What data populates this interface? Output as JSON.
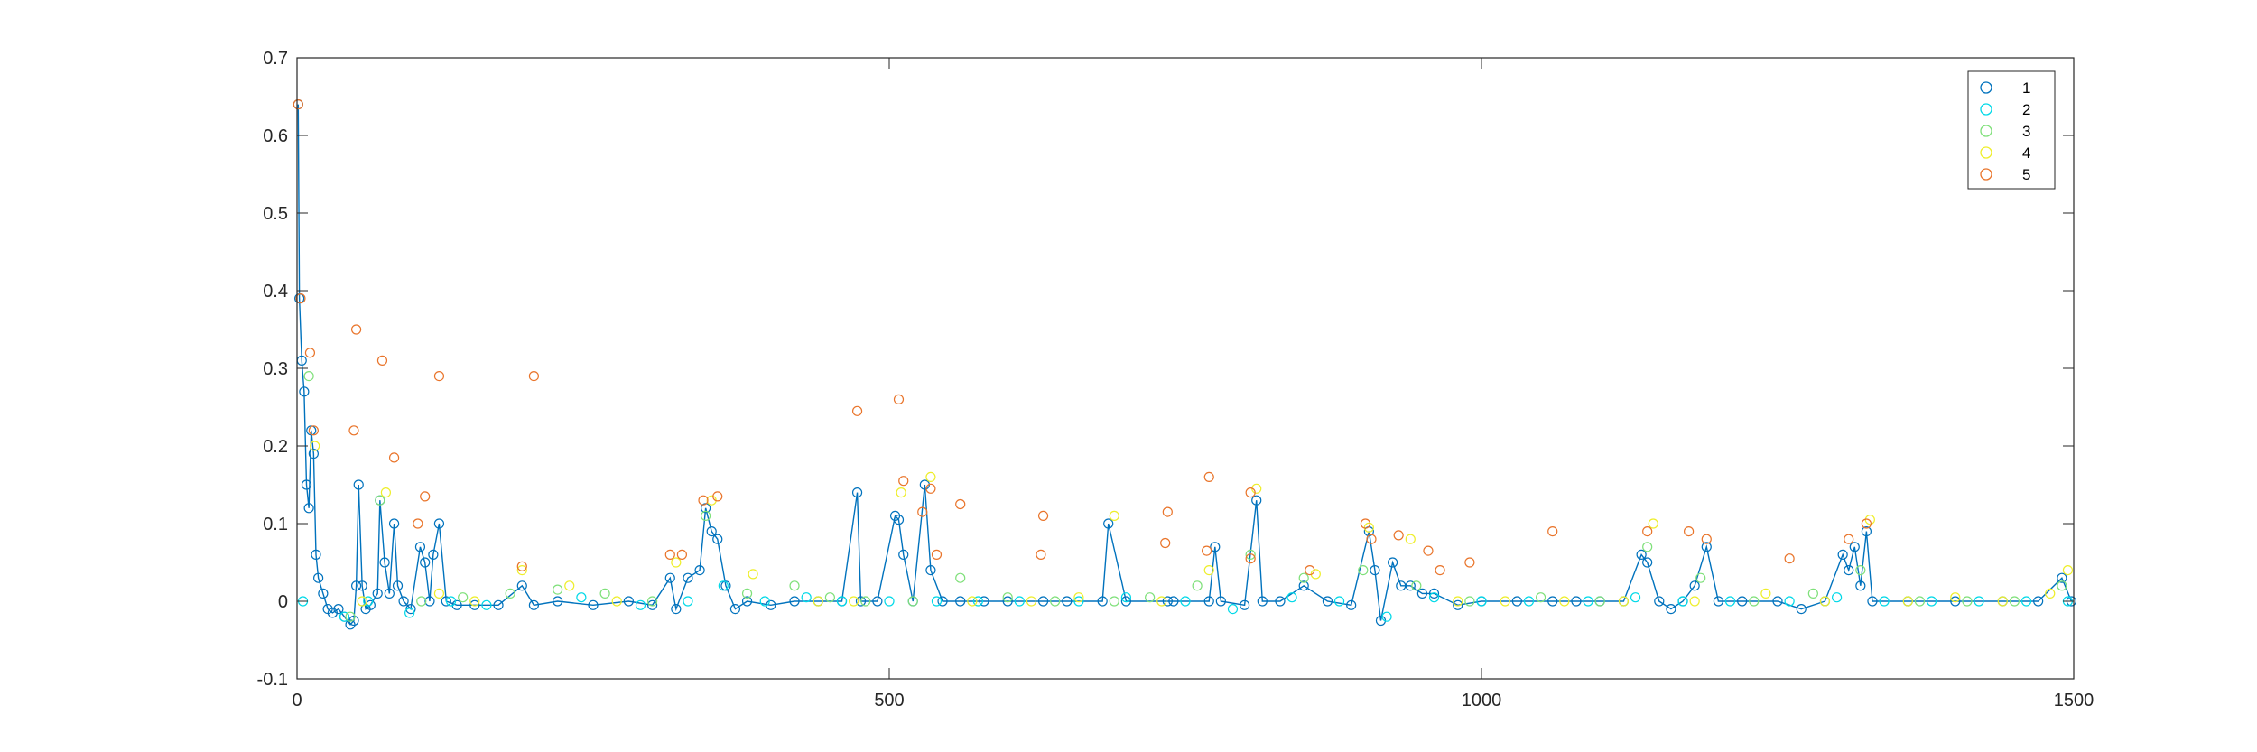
{
  "chart_data": {
    "type": "scatter",
    "title": "",
    "xlabel": "",
    "ylabel": "",
    "xlim": [
      0,
      1500
    ],
    "ylim": [
      -0.1,
      0.7
    ],
    "grid": false,
    "legend_position": "top-right",
    "x_ticks": [
      0,
      500,
      1000,
      1500
    ],
    "x_tick_labels": [
      "0",
      "500",
      "1000",
      "1500"
    ],
    "y_ticks": [
      -0.1,
      0,
      0.1,
      0.2,
      0.3,
      0.4,
      0.5,
      0.6,
      0.7
    ],
    "y_tick_labels": [
      "-0.1",
      "0",
      "0.1",
      "0.2",
      "0.3",
      "0.4",
      "0.5",
      "0.6",
      "0.7"
    ],
    "line_series": 1,
    "series": [
      {
        "name": "1",
        "color": "#0072BD",
        "points": [
          [
            1,
            0.64
          ],
          [
            2,
            0.39
          ],
          [
            4,
            0.31
          ],
          [
            6,
            0.27
          ],
          [
            8,
            0.15
          ],
          [
            10,
            0.12
          ],
          [
            12,
            0.22
          ],
          [
            14,
            0.19
          ],
          [
            16,
            0.06
          ],
          [
            18,
            0.03
          ],
          [
            22,
            0.01
          ],
          [
            26,
            -0.01
          ],
          [
            30,
            -0.015
          ],
          [
            35,
            -0.01
          ],
          [
            40,
            -0.02
          ],
          [
            45,
            -0.03
          ],
          [
            48,
            -0.025
          ],
          [
            50,
            0.02
          ],
          [
            52,
            0.15
          ],
          [
            55,
            0.02
          ],
          [
            58,
            -0.01
          ],
          [
            62,
            -0.005
          ],
          [
            68,
            0.01
          ],
          [
            70,
            0.13
          ],
          [
            74,
            0.05
          ],
          [
            78,
            0.01
          ],
          [
            82,
            0.1
          ],
          [
            85,
            0.02
          ],
          [
            90,
            0.0
          ],
          [
            96,
            -0.01
          ],
          [
            104,
            0.07
          ],
          [
            108,
            0.05
          ],
          [
            112,
            0.0
          ],
          [
            115,
            0.06
          ],
          [
            120,
            0.1
          ],
          [
            126,
            0.0
          ],
          [
            135,
            -0.005
          ],
          [
            150,
            -0.005
          ],
          [
            170,
            -0.005
          ],
          [
            190,
            0.02
          ],
          [
            200,
            -0.005
          ],
          [
            220,
            0.0
          ],
          [
            250,
            -0.005
          ],
          [
            280,
            0.0
          ],
          [
            300,
            -0.005
          ],
          [
            315,
            0.03
          ],
          [
            320,
            -0.01
          ],
          [
            330,
            0.03
          ],
          [
            340,
            0.04
          ],
          [
            345,
            0.12
          ],
          [
            350,
            0.09
          ],
          [
            355,
            0.08
          ],
          [
            362,
            0.02
          ],
          [
            370,
            -0.01
          ],
          [
            380,
            0.0
          ],
          [
            400,
            -0.005
          ],
          [
            420,
            0.0
          ],
          [
            440,
            0.0
          ],
          [
            460,
            0.0
          ],
          [
            473,
            0.14
          ],
          [
            476,
            0.0
          ],
          [
            490,
            0.0
          ],
          [
            505,
            0.11
          ],
          [
            508,
            0.105
          ],
          [
            512,
            0.06
          ],
          [
            520,
            0.0
          ],
          [
            530,
            0.15
          ],
          [
            535,
            0.04
          ],
          [
            545,
            0.0
          ],
          [
            560,
            0.0
          ],
          [
            580,
            0.0
          ],
          [
            600,
            0.0
          ],
          [
            630,
            0.0
          ],
          [
            650,
            0.0
          ],
          [
            680,
            0.0
          ],
          [
            685,
            0.1
          ],
          [
            700,
            0.0
          ],
          [
            735,
            0.0
          ],
          [
            740,
            0.0
          ],
          [
            770,
            0.0
          ],
          [
            775,
            0.07
          ],
          [
            780,
            0.0
          ],
          [
            800,
            -0.005
          ],
          [
            810,
            0.13
          ],
          [
            815,
            0.0
          ],
          [
            830,
            0.0
          ],
          [
            850,
            0.02
          ],
          [
            870,
            0.0
          ],
          [
            890,
            -0.005
          ],
          [
            905,
            0.09
          ],
          [
            910,
            0.04
          ],
          [
            915,
            -0.025
          ],
          [
            925,
            0.05
          ],
          [
            932,
            0.02
          ],
          [
            940,
            0.02
          ],
          [
            950,
            0.01
          ],
          [
            960,
            0.01
          ],
          [
            980,
            -0.005
          ],
          [
            1000,
            0.0
          ],
          [
            1030,
            0.0
          ],
          [
            1060,
            0.0
          ],
          [
            1080,
            0.0
          ],
          [
            1100,
            0.0
          ],
          [
            1120,
            0.0
          ],
          [
            1135,
            0.06
          ],
          [
            1140,
            0.05
          ],
          [
            1150,
            0.0
          ],
          [
            1160,
            -0.01
          ],
          [
            1170,
            0.0
          ],
          [
            1180,
            0.02
          ],
          [
            1190,
            0.07
          ],
          [
            1200,
            0.0
          ],
          [
            1220,
            0.0
          ],
          [
            1250,
            0.0
          ],
          [
            1270,
            -0.01
          ],
          [
            1290,
            0.0
          ],
          [
            1305,
            0.06
          ],
          [
            1310,
            0.04
          ],
          [
            1315,
            0.07
          ],
          [
            1320,
            0.02
          ],
          [
            1325,
            0.09
          ],
          [
            1330,
            0.0
          ],
          [
            1360,
            0.0
          ],
          [
            1400,
            0.0
          ],
          [
            1440,
            0.0
          ],
          [
            1470,
            0.0
          ],
          [
            1490,
            0.03
          ],
          [
            1498,
            0.0
          ]
        ]
      },
      {
        "name": "2",
        "color": "#00D9E8",
        "points": [
          [
            5,
            0.0
          ],
          [
            40,
            -0.02
          ],
          [
            60,
            0.0
          ],
          [
            95,
            -0.015
          ],
          [
            130,
            0.0
          ],
          [
            160,
            -0.005
          ],
          [
            240,
            0.005
          ],
          [
            290,
            -0.005
          ],
          [
            330,
            0.0
          ],
          [
            360,
            0.02
          ],
          [
            395,
            0.0
          ],
          [
            430,
            0.005
          ],
          [
            460,
            0.0
          ],
          [
            500,
            0.0
          ],
          [
            540,
            0.0
          ],
          [
            575,
            0.0
          ],
          [
            610,
            0.0
          ],
          [
            660,
            0.0
          ],
          [
            700,
            0.005
          ],
          [
            750,
            0.0
          ],
          [
            790,
            -0.01
          ],
          [
            840,
            0.005
          ],
          [
            880,
            0.0
          ],
          [
            920,
            -0.02
          ],
          [
            960,
            0.005
          ],
          [
            1000,
            0.0
          ],
          [
            1040,
            0.0
          ],
          [
            1090,
            0.0
          ],
          [
            1130,
            0.005
          ],
          [
            1170,
            0.0
          ],
          [
            1210,
            0.0
          ],
          [
            1260,
            0.0
          ],
          [
            1300,
            0.005
          ],
          [
            1340,
            0.0
          ],
          [
            1380,
            0.0
          ],
          [
            1420,
            0.0
          ],
          [
            1460,
            0.0
          ],
          [
            1495,
            0.0
          ]
        ]
      },
      {
        "name": "3",
        "color": "#7FE07A",
        "points": [
          [
            10,
            0.29
          ],
          [
            45,
            -0.02
          ],
          [
            70,
            0.13
          ],
          [
            105,
            0.0
          ],
          [
            140,
            0.005
          ],
          [
            180,
            0.01
          ],
          [
            220,
            0.015
          ],
          [
            260,
            0.01
          ],
          [
            300,
            0.0
          ],
          [
            345,
            0.11
          ],
          [
            380,
            0.01
          ],
          [
            420,
            0.02
          ],
          [
            450,
            0.005
          ],
          [
            480,
            0.0
          ],
          [
            520,
            0.0
          ],
          [
            560,
            0.03
          ],
          [
            600,
            0.005
          ],
          [
            640,
            0.0
          ],
          [
            690,
            0.0
          ],
          [
            720,
            0.005
          ],
          [
            760,
            0.02
          ],
          [
            805,
            0.06
          ],
          [
            850,
            0.03
          ],
          [
            900,
            0.04
          ],
          [
            945,
            0.02
          ],
          [
            990,
            0.0
          ],
          [
            1050,
            0.005
          ],
          [
            1100,
            0.0
          ],
          [
            1140,
            0.07
          ],
          [
            1185,
            0.03
          ],
          [
            1230,
            0.0
          ],
          [
            1280,
            0.01
          ],
          [
            1320,
            0.04
          ],
          [
            1370,
            0.0
          ],
          [
            1410,
            0.0
          ],
          [
            1450,
            0.0
          ],
          [
            1490,
            0.02
          ]
        ]
      },
      {
        "name": "4",
        "color": "#EEEE2A",
        "points": [
          [
            15,
            0.2
          ],
          [
            55,
            0.0
          ],
          [
            75,
            0.14
          ],
          [
            120,
            0.01
          ],
          [
            150,
            0.0
          ],
          [
            190,
            0.04
          ],
          [
            230,
            0.02
          ],
          [
            270,
            0.0
          ],
          [
            320,
            0.05
          ],
          [
            350,
            0.13
          ],
          [
            385,
            0.035
          ],
          [
            440,
            0.0
          ],
          [
            470,
            0.0
          ],
          [
            510,
            0.14
          ],
          [
            535,
            0.16
          ],
          [
            570,
            0.0
          ],
          [
            620,
            0.0
          ],
          [
            660,
            0.005
          ],
          [
            690,
            0.11
          ],
          [
            730,
            0.0
          ],
          [
            770,
            0.04
          ],
          [
            810,
            0.145
          ],
          [
            860,
            0.035
          ],
          [
            905,
            0.095
          ],
          [
            940,
            0.08
          ],
          [
            980,
            0.0
          ],
          [
            1020,
            0.0
          ],
          [
            1070,
            0.0
          ],
          [
            1120,
            0.0
          ],
          [
            1145,
            0.1
          ],
          [
            1180,
            0.0
          ],
          [
            1240,
            0.01
          ],
          [
            1290,
            0.0
          ],
          [
            1328,
            0.105
          ],
          [
            1360,
            0.0
          ],
          [
            1400,
            0.005
          ],
          [
            1440,
            0.0
          ],
          [
            1480,
            0.01
          ],
          [
            1495,
            0.04
          ]
        ]
      },
      {
        "name": "5",
        "color": "#E9742A",
        "points": [
          [
            1,
            0.64
          ],
          [
            3,
            0.39
          ],
          [
            11,
            0.32
          ],
          [
            14,
            0.22
          ],
          [
            50,
            0.35
          ],
          [
            48,
            0.22
          ],
          [
            72,
            0.31
          ],
          [
            82,
            0.185
          ],
          [
            102,
            0.1
          ],
          [
            108,
            0.135
          ],
          [
            120,
            0.29
          ],
          [
            200,
            0.29
          ],
          [
            190,
            0.045
          ],
          [
            315,
            0.06
          ],
          [
            325,
            0.06
          ],
          [
            343,
            0.13
          ],
          [
            355,
            0.135
          ],
          [
            473,
            0.245
          ],
          [
            508,
            0.26
          ],
          [
            512,
            0.155
          ],
          [
            528,
            0.115
          ],
          [
            535,
            0.145
          ],
          [
            540,
            0.06
          ],
          [
            560,
            0.125
          ],
          [
            630,
            0.11
          ],
          [
            628,
            0.06
          ],
          [
            735,
            0.115
          ],
          [
            733,
            0.075
          ],
          [
            770,
            0.16
          ],
          [
            768,
            0.065
          ],
          [
            805,
            0.055
          ],
          [
            805,
            0.14
          ],
          [
            855,
            0.04
          ],
          [
            902,
            0.1
          ],
          [
            907,
            0.08
          ],
          [
            930,
            0.085
          ],
          [
            955,
            0.065
          ],
          [
            965,
            0.04
          ],
          [
            990,
            0.05
          ],
          [
            1060,
            0.09
          ],
          [
            1140,
            0.09
          ],
          [
            1175,
            0.09
          ],
          [
            1190,
            0.08
          ],
          [
            1260,
            0.055
          ],
          [
            1310,
            0.08
          ],
          [
            1325,
            0.1
          ]
        ]
      }
    ]
  }
}
